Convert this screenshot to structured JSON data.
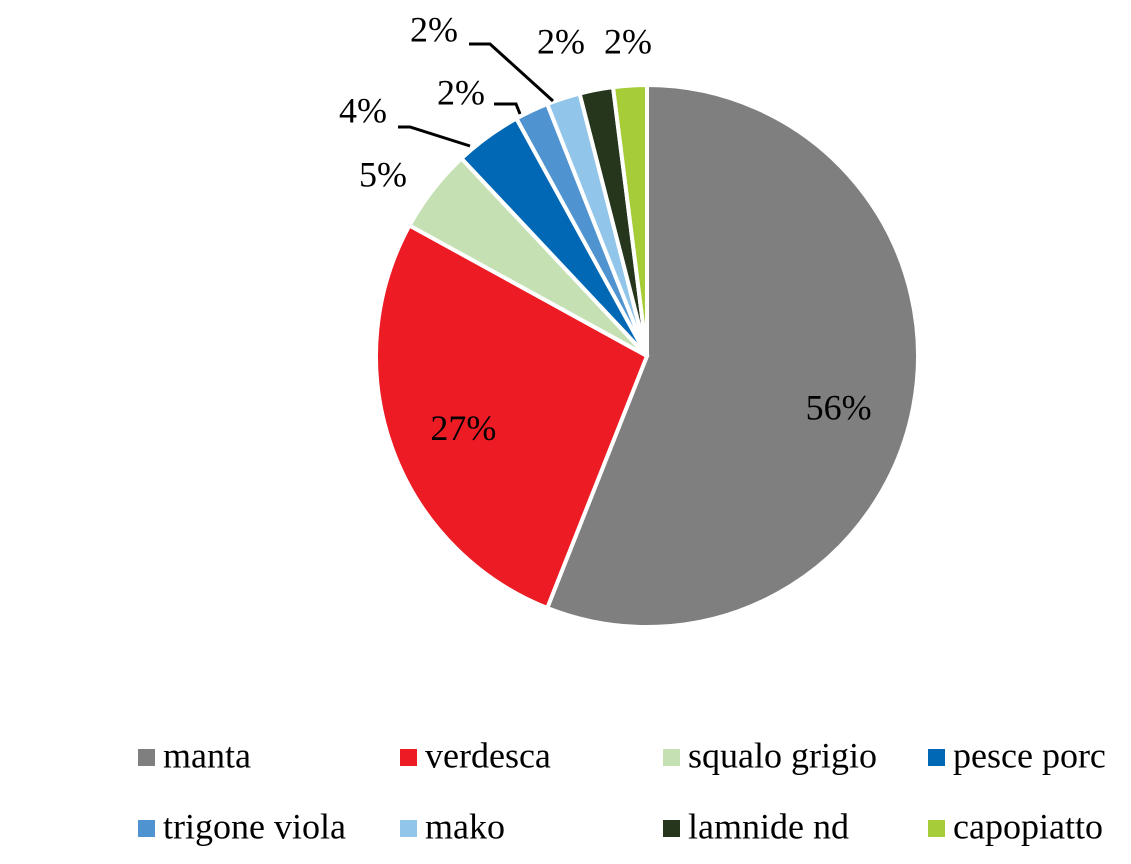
{
  "chart_data": {
    "type": "pie",
    "categories": [
      "manta",
      "verdesca",
      "squalo grigio",
      "pesce porc",
      "trigone viola",
      "mako",
      "lamnide nd",
      "capopiatto"
    ],
    "values": [
      56,
      27,
      5,
      4,
      2,
      2,
      2,
      2
    ],
    "value_labels": [
      "56%",
      "27%",
      "5%",
      "4%",
      "2%",
      "2%",
      "2%",
      "2%"
    ],
    "colors": [
      "#7f7f7f",
      "#ed1c24",
      "#c5e0b3",
      "#0068b4",
      "#4f93d0",
      "#92c5ea",
      "#26361c",
      "#a6cd38"
    ],
    "legend": "bottom"
  }
}
